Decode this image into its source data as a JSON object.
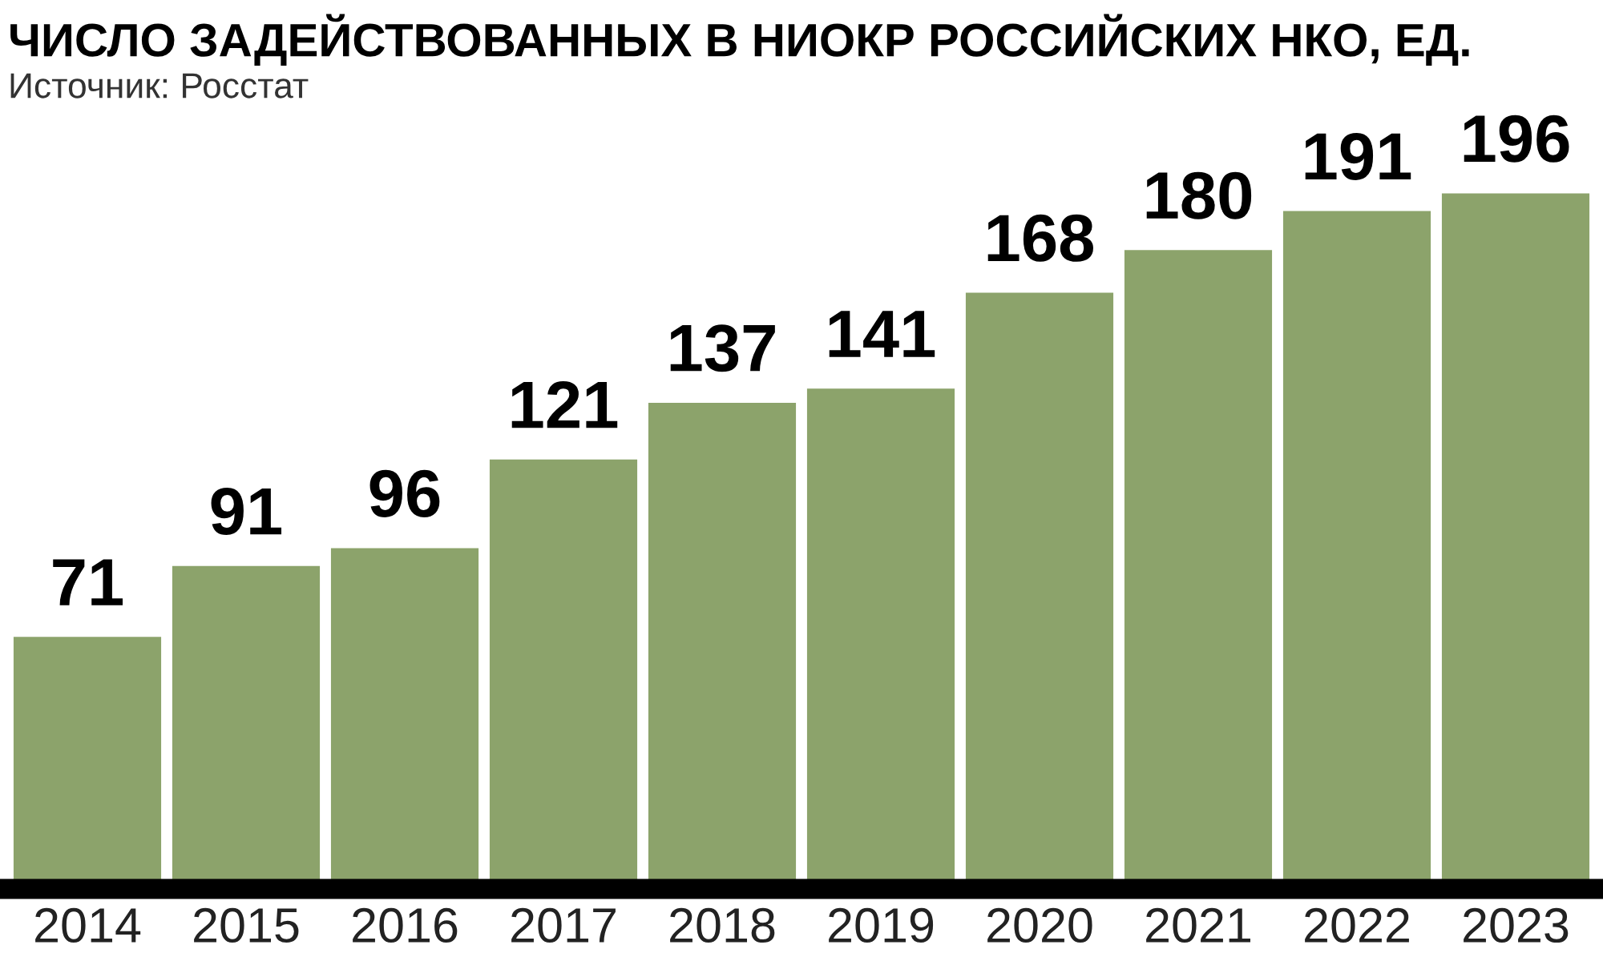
{
  "chart_data": {
    "type": "bar",
    "title": "ЧИСЛО ЗАДЕЙСТВОВАННЫХ В НИОКР РОССИЙСКИХ НКО, ЕД.",
    "subtitle": "Источник: Росстат",
    "categories": [
      "2014",
      "2015",
      "2016",
      "2017",
      "2018",
      "2019",
      "2020",
      "2021",
      "2022",
      "2023"
    ],
    "values": [
      71,
      91,
      96,
      121,
      137,
      141,
      168,
      180,
      191,
      196
    ],
    "color": "#8ca36b",
    "data_labels": true,
    "legend": false
  }
}
